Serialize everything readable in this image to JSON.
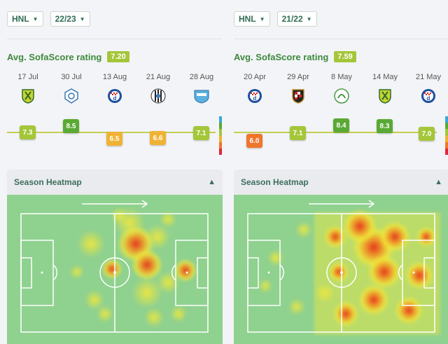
{
  "panels": [
    {
      "league": "HNL",
      "season": "22/23",
      "rating_label": "Avg. SofaScore rating",
      "avg_rating": "7.20",
      "matches": [
        {
          "date": "17 Jul",
          "crest": "green-yellow-shield-crest-icon",
          "rating": "7.3",
          "color": "#a4c639"
        },
        {
          "date": "30 Jul",
          "crest": "blue-white-crest-icon",
          "rating": "8.5",
          "color": "#5aa934"
        },
        {
          "date": "13 Aug",
          "crest": "dinamo-crest-icon",
          "rating": "6.5",
          "color": "#f0b232"
        },
        {
          "date": "21 Aug",
          "crest": "black-white-stripes-crest-icon",
          "rating": "6.6",
          "color": "#f0b232"
        },
        {
          "date": "28 Aug",
          "crest": "light-blue-crest-icon",
          "rating": "7.1",
          "color": "#a4c639"
        }
      ],
      "heatmap_title": "Season Heatmap"
    },
    {
      "league": "HNL",
      "season": "21/22",
      "rating_label": "Avg. SofaScore rating",
      "avg_rating": "7.59",
      "matches": [
        {
          "date": "20 Apr",
          "crest": "dinamo-crest-icon",
          "rating": "6.0",
          "color": "#f0752d"
        },
        {
          "date": "29 Apr",
          "crest": "checkered-shield-crest-icon",
          "rating": "7.1",
          "color": "#a4c639"
        },
        {
          "date": "8 May",
          "crest": "white-green-crest-icon",
          "rating": "8.4",
          "color": "#5aa934"
        },
        {
          "date": "14 May",
          "crest": "green-yellow-shield-crest-icon",
          "rating": "8.3",
          "color": "#5aa934"
        },
        {
          "date": "21 May",
          "crest": "dinamo-crest-icon",
          "rating": "7.0",
          "color": "#a4c639"
        }
      ],
      "heatmap_title": "Season Heatmap"
    }
  ],
  "colors": {
    "accent_green": "#3d8a3d",
    "pitch": "#8fd18f",
    "rating_good": "#5aa934",
    "rating_ok": "#a4c639",
    "rating_avg": "#f0b232",
    "rating_poor": "#f0752d"
  }
}
